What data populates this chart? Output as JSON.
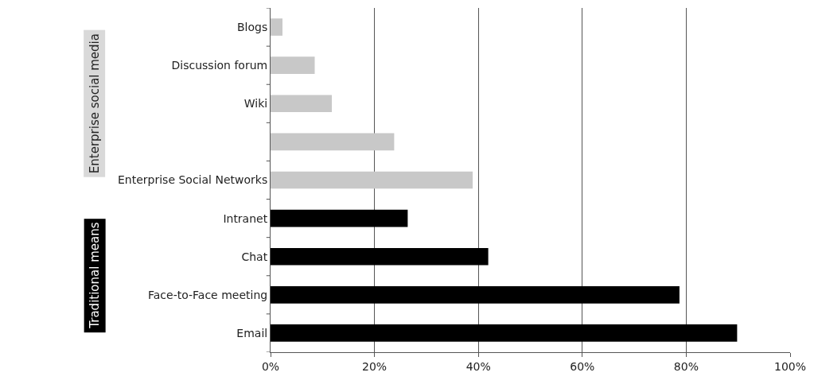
{
  "chart_data": {
    "type": "bar",
    "orientation": "horizontal",
    "categories": [
      "Blogs",
      "Discussion forum",
      "Wiki",
      null,
      "Enterprise Social Networks",
      "Intranet",
      "Chat",
      "Face-to-Face meeting",
      "Email"
    ],
    "values": [
      2.3,
      8.5,
      11.8,
      23.8,
      38.9,
      26.4,
      41.9,
      78.7,
      89.8
    ],
    "colors": [
      "#c8c8c8",
      "#c8c8c8",
      "#c8c8c8",
      "#c8c8c8",
      "#c8c8c8",
      "#000000",
      "#000000",
      "#000000",
      "#000000"
    ],
    "xlim": [
      0,
      100
    ],
    "xticks": [
      {
        "value": 0,
        "label": "0%"
      },
      {
        "value": 20,
        "label": "20%"
      },
      {
        "value": 40,
        "label": "40%"
      },
      {
        "value": 60,
        "label": "60%"
      },
      {
        "value": 80,
        "label": "80%"
      },
      {
        "value": 100,
        "label": "100%"
      }
    ],
    "grid": "x",
    "annotations": [
      "Enterprise social media",
      "Traditional means"
    ]
  }
}
